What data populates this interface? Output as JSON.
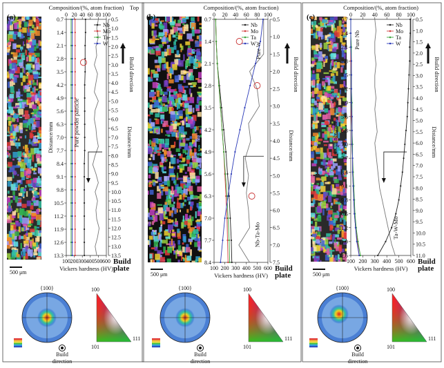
{
  "figure": {
    "colors": {
      "Nb": "#222222",
      "Mo": "#d23a3a",
      "Ta": "#3aa43a",
      "W": "#2b3ab8",
      "hardness": "#777777",
      "circle": "#c83030"
    },
    "ipf": {
      "v100": "100",
      "v101": "101",
      "v111": "111"
    }
  },
  "chart_data": [
    {
      "type": "line",
      "panel": "(a)",
      "top_label": "Top",
      "build_plate_label": "Build\nplate",
      "build_direction_label": "Build direction",
      "comp_xlabel": "Composition/(%, atom fraction)",
      "hv_xlabel": "Vickers hardness (HV)",
      "left_ylabel": "Distance/mm",
      "right_ylabel": "Distance/mm",
      "scale_bar": "500 μm",
      "pole_label": "{100}",
      "bd_label": "Build\ndirection",
      "annotation": "Pure powder particle",
      "comp_xlim": [
        0,
        100
      ],
      "comp_ticks": [
        "0",
        "20",
        "40",
        "60",
        "80",
        "100"
      ],
      "hv_xlim": [
        100,
        600
      ],
      "hv_ticks": [
        "100",
        "200",
        "300",
        "400",
        "500",
        "600"
      ],
      "left_ylim": [
        0.7,
        13.3
      ],
      "left_ticks": [
        "0.7",
        "1.4",
        "2.1",
        "2.8",
        "3.5",
        "4.2",
        "4.9",
        "5.6",
        "6.3",
        "7.0",
        "7.7",
        "8.4",
        "9.1",
        "9.8",
        "10.5",
        "11.2",
        "11.9",
        "12.6",
        "13.3"
      ],
      "right_ylim": [
        0.5,
        13.5
      ],
      "right_ticks": [
        "0.5",
        "1.0",
        "1.5",
        "2.0",
        "2.5",
        "3.0",
        "3.5",
        "4.0",
        "4.5",
        "5.0",
        "5.5",
        "6.0",
        "6.5",
        "7.0",
        "7.5",
        "8.0",
        "8.5",
        "9.0",
        "9.5",
        "10.0",
        "10.5",
        "11.0",
        "11.5",
        "12.0",
        "12.5",
        "13.0",
        "13.5"
      ],
      "series": [
        {
          "name": "Nb",
          "x": [
            48,
            48,
            47,
            47,
            47,
            46,
            46,
            46,
            46,
            46,
            46,
            45,
            45,
            45,
            45,
            45,
            45,
            45,
            45
          ],
          "y": [
            0.7,
            1.4,
            2.1,
            2.8,
            3.5,
            4.2,
            4.9,
            5.6,
            6.3,
            7.0,
            7.7,
            8.4,
            9.1,
            9.8,
            10.5,
            11.2,
            11.9,
            12.6,
            13.3
          ]
        },
        {
          "name": "Mo",
          "x": [
            22,
            22,
            22,
            22,
            22,
            22,
            22,
            22,
            22,
            22,
            22,
            22,
            22,
            22,
            22,
            22,
            22,
            22,
            22
          ],
          "y": [
            0.7,
            1.4,
            2.1,
            2.8,
            3.5,
            4.2,
            4.9,
            5.6,
            6.3,
            7.0,
            7.7,
            8.4,
            9.1,
            9.8,
            10.5,
            11.2,
            11.9,
            12.6,
            13.3
          ]
        },
        {
          "name": "Ta",
          "x": [
            12,
            12,
            12,
            12,
            12,
            12,
            12,
            12,
            12,
            12,
            12,
            12,
            12,
            12,
            12,
            12,
            12,
            12,
            12
          ],
          "y": [
            0.7,
            1.4,
            2.1,
            2.8,
            3.5,
            4.2,
            4.9,
            5.6,
            6.3,
            7.0,
            7.7,
            8.4,
            9.1,
            9.8,
            10.5,
            11.2,
            11.9,
            12.6,
            13.3
          ]
        },
        {
          "name": "W",
          "x": [
            15,
            15,
            15,
            15,
            15,
            15,
            15,
            15,
            15,
            15,
            15,
            15,
            15,
            15,
            15,
            15,
            15,
            15,
            15
          ],
          "y": [
            0.7,
            1.4,
            2.1,
            2.8,
            3.5,
            4.2,
            4.9,
            5.6,
            6.3,
            7.0,
            7.7,
            8.4,
            9.1,
            9.8,
            10.5,
            11.2,
            11.9,
            12.6,
            13.3
          ]
        }
      ],
      "hardness": {
        "hv": [
          500,
          480,
          500,
          470,
          480,
          450,
          490,
          470,
          450,
          500,
          460,
          450,
          470,
          480,
          500,
          460,
          430,
          470,
          500,
          460,
          490,
          470,
          480,
          510,
          490,
          460,
          480
        ],
        "y": [
          0.5,
          1.0,
          1.5,
          2.0,
          2.5,
          3.0,
          3.5,
          4.0,
          4.5,
          5.0,
          5.5,
          6.0,
          6.5,
          7.0,
          7.5,
          8.0,
          8.5,
          9.0,
          9.5,
          10.0,
          10.5,
          11.0,
          11.5,
          12.0,
          12.5,
          13.0,
          13.5
        ]
      },
      "circle": {
        "x": 43,
        "y": 3.0
      }
    },
    {
      "type": "line",
      "panel": "(b)",
      "top_label": "",
      "build_plate_label": "Build\nplate",
      "build_direction_label": "Build direction",
      "comp_xlabel": "Composition/(%, atom fraction)",
      "hv_xlabel": "Vickers hardness (HV)",
      "left_ylabel": "Distance/mm",
      "right_ylabel": "Distance/mm",
      "scale_bar": "500 μm",
      "pole_label": "{100}",
      "bd_label": "Build\ndirection",
      "annotation": "Pure W",
      "annotation2": "Nb-Ta-Mo",
      "comp_xlim": [
        0,
        100
      ],
      "comp_ticks": [
        "0",
        "20",
        "40",
        "60",
        "80",
        "100"
      ],
      "hv_xlim": [
        100,
        600
      ],
      "hv_ticks": [
        "100",
        "200",
        "300",
        "400",
        "500",
        "600"
      ],
      "left_ylim": [
        0.7,
        8.4
      ],
      "left_ticks": [
        "0.7",
        "1.4",
        "2.1",
        "2.8",
        "3.5",
        "4.2",
        "4.9",
        "5.6",
        "6.3",
        "7.0",
        "7.7",
        "8.4"
      ],
      "right_ylim": [
        0.5,
        7.5
      ],
      "right_ticks": [
        "0.5",
        "1.0",
        "1.5",
        "2.0",
        "2.5",
        "3.0",
        "3.5",
        "4.0",
        "4.5",
        "5.0",
        "5.5",
        "6.0",
        "6.5",
        "7.0",
        "7.5"
      ],
      "series": [
        {
          "name": "Nb",
          "x": [
            3,
            4,
            6,
            10,
            14,
            18,
            22,
            25,
            28,
            30,
            32,
            33
          ],
          "y": [
            0.7,
            1.4,
            2.1,
            2.8,
            3.5,
            4.2,
            4.9,
            5.6,
            6.3,
            7.0,
            7.7,
            8.4
          ]
        },
        {
          "name": "Mo",
          "x": [
            3,
            4,
            6,
            9,
            12,
            15,
            18,
            20,
            22,
            24,
            25,
            26
          ],
          "y": [
            0.7,
            1.4,
            2.1,
            2.8,
            3.5,
            4.2,
            4.9,
            5.6,
            6.3,
            7.0,
            7.7,
            8.4
          ]
        },
        {
          "name": "Ta",
          "x": [
            3,
            4,
            6,
            9,
            12,
            15,
            18,
            21,
            24,
            26,
            28,
            29
          ],
          "y": [
            0.7,
            1.4,
            2.1,
            2.8,
            3.5,
            4.2,
            4.9,
            5.6,
            6.3,
            7.0,
            7.7,
            8.4
          ]
        },
        {
          "name": "W",
          "x": [
            91,
            86,
            77,
            67,
            57,
            48,
            39,
            32,
            26,
            20,
            16,
            12
          ],
          "y": [
            0.7,
            1.4,
            2.1,
            2.8,
            3.5,
            4.2,
            4.9,
            5.6,
            6.3,
            7.0,
            7.7,
            8.4
          ]
        }
      ],
      "hardness": {
        "hv": [
          560,
          560,
          560,
          430,
          500,
          520,
          420,
          440,
          390,
          420,
          400,
          420,
          430,
          330,
          430
        ],
        "y": [
          0.5,
          1.0,
          1.5,
          2.0,
          2.5,
          3.0,
          3.5,
          4.0,
          4.5,
          5.0,
          5.5,
          6.0,
          6.5,
          7.0,
          7.5
        ]
      },
      "circles": [
        {
          "x": 47,
          "y": 1.4
        },
        {
          "x": 80,
          "y": 2.8
        },
        {
          "x": 70,
          "y": 6.3
        }
      ]
    },
    {
      "type": "line",
      "panel": "(c)",
      "top_label": "",
      "build_plate_label": "Build\nplate",
      "build_direction_label": "Build direction",
      "comp_xlabel": "Composition/(%, atom fraction)",
      "hv_xlabel": "Vickers hardness (HV)",
      "left_ylabel": "Distance/mm",
      "right_ylabel": "Distance/mm",
      "scale_bar": "500 μm",
      "pole_label": "{100}",
      "bd_label": "Build\ndirection",
      "annotation": "Pure Nb",
      "annotation2": "Ta-W-Mo",
      "comp_xlim": [
        0,
        100
      ],
      "comp_ticks": [
        "0",
        "20",
        "40",
        "60",
        "80",
        "100"
      ],
      "hv_xlim": [
        100,
        600
      ],
      "hv_ticks": [
        "100",
        "200",
        "300",
        "400",
        "500",
        "600"
      ],
      "left_ylim": [
        0.7,
        12.6
      ],
      "left_ticks": [
        "0.7",
        "1.4",
        "2.1",
        "2.8",
        "3.5",
        "4.2",
        "4.9",
        "5.6",
        "6.3",
        "7.0",
        "7.7",
        "8.4",
        "9.1",
        "9.8",
        "10.5",
        "11.2",
        "11.9",
        "12.6"
      ],
      "right_ylim": [
        0.5,
        11.0
      ],
      "right_ticks": [
        "0.5",
        "1.0",
        "1.5",
        "2.0",
        "2.5",
        "3.0",
        "3.5",
        "4.0",
        "4.5",
        "5.0",
        "5.5",
        "6.0",
        "6.5",
        "7.0",
        "7.5",
        "8.0",
        "8.5",
        "9.0",
        "9.5",
        "10.0",
        "10.5",
        "11.0"
      ],
      "series": [
        {
          "name": "Nb",
          "x": [
            99,
            99,
            98,
            98,
            97,
            96,
            95,
            94,
            92,
            90,
            88,
            86,
            83,
            80,
            75,
            68,
            58,
            45
          ],
          "y": [
            0.7,
            1.4,
            2.1,
            2.8,
            3.5,
            4.2,
            4.9,
            5.6,
            6.3,
            7.0,
            7.7,
            8.4,
            9.1,
            9.8,
            10.5,
            11.2,
            11.9,
            12.6
          ]
        },
        {
          "name": "Mo",
          "x": [
            0,
            0,
            0,
            0,
            1,
            1,
            1,
            1,
            2,
            2,
            3,
            3,
            4,
            5,
            6,
            8,
            11,
            14
          ],
          "y": [
            0.7,
            1.4,
            2.1,
            2.8,
            3.5,
            4.2,
            4.9,
            5.6,
            6.3,
            7.0,
            7.7,
            8.4,
            9.1,
            9.8,
            10.5,
            11.2,
            11.9,
            12.6
          ]
        },
        {
          "name": "Ta",
          "x": [
            0,
            0,
            1,
            1,
            1,
            1,
            2,
            2,
            2,
            3,
            3,
            4,
            5,
            6,
            7,
            9,
            12,
            16
          ],
          "y": [
            0.7,
            1.4,
            2.1,
            2.8,
            3.5,
            4.2,
            4.9,
            5.6,
            6.3,
            7.0,
            7.7,
            8.4,
            9.1,
            9.8,
            10.5,
            11.2,
            11.9,
            12.6
          ]
        },
        {
          "name": "W",
          "x": [
            0,
            0,
            0,
            1,
            1,
            1,
            1,
            2,
            2,
            2,
            3,
            3,
            4,
            5,
            6,
            8,
            10,
            14
          ],
          "y": [
            0.7,
            1.4,
            2.1,
            2.8,
            3.5,
            4.2,
            4.9,
            5.6,
            6.3,
            7.0,
            7.7,
            8.4,
            9.1,
            9.8,
            10.5,
            11.2,
            11.9,
            12.6
          ]
        }
      ],
      "hardness": {
        "hv": [
          300,
          310,
          300,
          300,
          310,
          300,
          300,
          310,
          300,
          310,
          320,
          300,
          310,
          320,
          330,
          340,
          360,
          380,
          400,
          420,
          440,
          470
        ],
        "y": [
          0.5,
          1.0,
          1.5,
          2.0,
          2.5,
          3.0,
          3.5,
          4.0,
          4.5,
          5.0,
          5.5,
          6.0,
          6.5,
          7.0,
          7.5,
          8.0,
          8.5,
          9.0,
          9.5,
          10.0,
          10.5,
          11.0
        ]
      }
    }
  ]
}
